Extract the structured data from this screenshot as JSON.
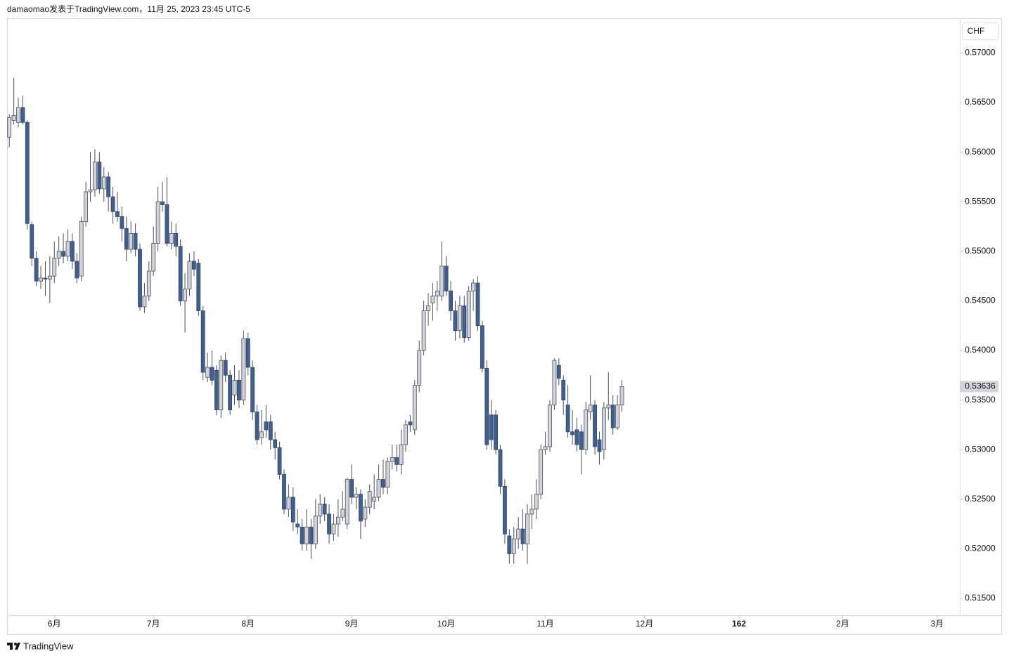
{
  "chart_data": {
    "type": "candlestick",
    "title": "damaomao发表于TradingView.com，11月 25, 2023 23:45 UTC-5",
    "currency": "CHF",
    "brand": "TradingView",
    "up_color": "#d1d4dc",
    "down_color": "#42608f",
    "xlim": [
      -0.5,
      211
    ],
    "ylim": [
      0.5133,
      0.5735
    ],
    "xticks": [
      {
        "value": 10,
        "label": "6月"
      },
      {
        "value": 32,
        "label": "7月"
      },
      {
        "value": 53,
        "label": "8月"
      },
      {
        "value": 76,
        "label": "9月"
      },
      {
        "value": 97,
        "label": "10月"
      },
      {
        "value": 119,
        "label": "11月"
      },
      {
        "value": 141,
        "label": "12月"
      },
      162,
      {
        "value": 185,
        "label": "2月"
      },
      {
        "value": 206,
        "label": "3月"
      }
    ],
    "yticks": [
      {
        "value": 0.515,
        "label": "0.51500"
      },
      {
        "value": 0.52,
        "label": "0.52000"
      },
      {
        "value": 0.525,
        "label": "0.52500"
      },
      {
        "value": 0.53,
        "label": "0.53000"
      },
      {
        "value": 0.535,
        "label": "0.53500"
      },
      {
        "value": 0.54,
        "label": "0.54000"
      },
      {
        "value": 0.545,
        "label": "0.54500"
      },
      {
        "value": 0.55,
        "label": "0.55000"
      },
      {
        "value": 0.555,
        "label": "0.55500"
      },
      {
        "value": 0.56,
        "label": "0.56000"
      },
      {
        "value": 0.565,
        "label": "0.56500"
      },
      {
        "value": 0.57,
        "label": "0.57000"
      }
    ],
    "ohlc": [
      [
        0.5615,
        0.5638,
        0.5605,
        0.5635
      ],
      [
        0.5632,
        0.5675,
        0.5628,
        0.5637
      ],
      [
        0.563,
        0.5655,
        0.5625,
        0.5645
      ],
      [
        0.5645,
        0.5657,
        0.5628,
        0.563
      ],
      [
        0.563,
        0.5632,
        0.5522,
        0.5528
      ],
      [
        0.5527,
        0.553,
        0.5485,
        0.5493
      ],
      [
        0.5493,
        0.55,
        0.5465,
        0.547
      ],
      [
        0.547,
        0.5485,
        0.5462,
        0.5473
      ],
      [
        0.5473,
        0.549,
        0.5455,
        0.5472
      ],
      [
        0.5472,
        0.5495,
        0.5448,
        0.5475
      ],
      [
        0.5475,
        0.551,
        0.5468,
        0.5493
      ],
      [
        0.5493,
        0.5515,
        0.5485,
        0.55
      ],
      [
        0.55,
        0.5518,
        0.5488,
        0.5495
      ],
      [
        0.5495,
        0.5522,
        0.549,
        0.551
      ],
      [
        0.551,
        0.5518,
        0.5482,
        0.549
      ],
      [
        0.549,
        0.5498,
        0.5468,
        0.5473
      ],
      [
        0.5475,
        0.5535,
        0.547,
        0.553
      ],
      [
        0.553,
        0.557,
        0.5525,
        0.556
      ],
      [
        0.556,
        0.56,
        0.555,
        0.5562
      ],
      [
        0.5562,
        0.5603,
        0.5555,
        0.559
      ],
      [
        0.559,
        0.56,
        0.5558,
        0.5563
      ],
      [
        0.5563,
        0.5585,
        0.555,
        0.5575
      ],
      [
        0.5575,
        0.558,
        0.554,
        0.5555
      ],
      [
        0.5555,
        0.5565,
        0.5528,
        0.554
      ],
      [
        0.554,
        0.556,
        0.553,
        0.5535
      ],
      [
        0.5535,
        0.5545,
        0.551,
        0.5523
      ],
      [
        0.5523,
        0.5535,
        0.549,
        0.5502
      ],
      [
        0.5502,
        0.553,
        0.5498,
        0.5518
      ],
      [
        0.5518,
        0.5528,
        0.5495,
        0.5502
      ],
      [
        0.5502,
        0.5508,
        0.544,
        0.5444
      ],
      [
        0.5444,
        0.5468,
        0.5438,
        0.5455
      ],
      [
        0.5455,
        0.549,
        0.545,
        0.548
      ],
      [
        0.548,
        0.5525,
        0.5475,
        0.5508
      ],
      [
        0.5508,
        0.5565,
        0.55,
        0.555
      ],
      [
        0.555,
        0.557,
        0.554,
        0.5547
      ],
      [
        0.5547,
        0.5575,
        0.5505,
        0.5508
      ],
      [
        0.5508,
        0.553,
        0.5502,
        0.5518
      ],
      [
        0.5518,
        0.5528,
        0.5495,
        0.5505
      ],
      [
        0.5505,
        0.5512,
        0.5445,
        0.545
      ],
      [
        0.545,
        0.5478,
        0.5418,
        0.5462
      ],
      [
        0.5462,
        0.5498,
        0.5455,
        0.549
      ],
      [
        0.549,
        0.55,
        0.5475,
        0.5482
      ],
      [
        0.5488,
        0.5492,
        0.5435,
        0.544
      ],
      [
        0.544,
        0.5445,
        0.537,
        0.5378
      ],
      [
        0.5373,
        0.5398,
        0.5368,
        0.5383
      ],
      [
        0.5383,
        0.54,
        0.5365,
        0.537
      ],
      [
        0.538,
        0.5385,
        0.5335,
        0.534
      ],
      [
        0.534,
        0.5395,
        0.5332,
        0.539
      ],
      [
        0.539,
        0.5398,
        0.5368,
        0.5375
      ],
      [
        0.5375,
        0.538,
        0.5335,
        0.534
      ],
      [
        0.5355,
        0.5385,
        0.5345,
        0.537
      ],
      [
        0.537,
        0.538,
        0.5342,
        0.535
      ],
      [
        0.535,
        0.542,
        0.5345,
        0.5412
      ],
      [
        0.5412,
        0.5418,
        0.5375,
        0.5383
      ],
      [
        0.5383,
        0.539,
        0.533,
        0.5338
      ],
      [
        0.5338,
        0.5345,
        0.5305,
        0.531
      ],
      [
        0.5312,
        0.534,
        0.5305,
        0.5318
      ],
      [
        0.5328,
        0.5345,
        0.5312,
        0.532
      ],
      [
        0.5328,
        0.5335,
        0.53,
        0.531
      ],
      [
        0.531,
        0.5318,
        0.529,
        0.5302
      ],
      [
        0.5302,
        0.5308,
        0.527,
        0.5275
      ],
      [
        0.5275,
        0.528,
        0.5235,
        0.524
      ],
      [
        0.524,
        0.5265,
        0.5232,
        0.5252
      ],
      [
        0.5252,
        0.5262,
        0.5218,
        0.5227
      ],
      [
        0.5225,
        0.524,
        0.5215,
        0.5222
      ],
      [
        0.5222,
        0.523,
        0.5198,
        0.5205
      ],
      [
        0.5205,
        0.524,
        0.5198,
        0.5222
      ],
      [
        0.5222,
        0.523,
        0.519,
        0.5205
      ],
      [
        0.5205,
        0.525,
        0.52,
        0.5233
      ],
      [
        0.5233,
        0.5255,
        0.5225,
        0.5245
      ],
      [
        0.5245,
        0.5252,
        0.5228,
        0.5235
      ],
      [
        0.5235,
        0.5245,
        0.5205,
        0.5215
      ],
      [
        0.5215,
        0.5235,
        0.5208,
        0.5225
      ],
      [
        0.5225,
        0.525,
        0.5212,
        0.5232
      ],
      [
        0.5232,
        0.5258,
        0.5228,
        0.524
      ],
      [
        0.5225,
        0.5272,
        0.522,
        0.527
      ],
      [
        0.527,
        0.5285,
        0.5245,
        0.5252
      ],
      [
        0.5252,
        0.5262,
        0.524,
        0.5255
      ],
      [
        0.5255,
        0.526,
        0.521,
        0.5228
      ],
      [
        0.523,
        0.525,
        0.5222,
        0.5242
      ],
      [
        0.5242,
        0.5265,
        0.5235,
        0.5258
      ],
      [
        0.5248,
        0.5275,
        0.524,
        0.5252
      ],
      [
        0.5252,
        0.5285,
        0.5248,
        0.527
      ],
      [
        0.527,
        0.529,
        0.5255,
        0.5262
      ],
      [
        0.5262,
        0.5292,
        0.5255,
        0.5288
      ],
      [
        0.5288,
        0.5305,
        0.528,
        0.5292
      ],
      [
        0.5292,
        0.5305,
        0.5278,
        0.5285
      ],
      [
        0.5285,
        0.532,
        0.5275,
        0.5305
      ],
      [
        0.5305,
        0.533,
        0.5298,
        0.5325
      ],
      [
        0.5328,
        0.5335,
        0.5318,
        0.5325
      ],
      [
        0.532,
        0.537,
        0.5315,
        0.5365
      ],
      [
        0.5365,
        0.541,
        0.5358,
        0.54
      ],
      [
        0.54,
        0.545,
        0.5395,
        0.544
      ],
      [
        0.544,
        0.5458,
        0.5425,
        0.5445
      ],
      [
        0.5448,
        0.5468,
        0.543,
        0.5455
      ],
      [
        0.5455,
        0.547,
        0.544,
        0.546
      ],
      [
        0.5455,
        0.551,
        0.545,
        0.5485
      ],
      [
        0.5485,
        0.5495,
        0.5455,
        0.546
      ],
      [
        0.546,
        0.547,
        0.543,
        0.544
      ],
      [
        0.544,
        0.545,
        0.541,
        0.542
      ],
      [
        0.542,
        0.5455,
        0.5412,
        0.5445
      ],
      [
        0.5445,
        0.5455,
        0.5408,
        0.5413
      ],
      [
        0.5413,
        0.5465,
        0.541,
        0.546
      ],
      [
        0.546,
        0.5472,
        0.544,
        0.5468
      ],
      [
        0.5468,
        0.5475,
        0.542,
        0.5425
      ],
      [
        0.5425,
        0.543,
        0.5378,
        0.5382
      ],
      [
        0.5382,
        0.539,
        0.53,
        0.5305
      ],
      [
        0.5335,
        0.535,
        0.53,
        0.531
      ],
      [
        0.5335,
        0.534,
        0.5295,
        0.53
      ],
      [
        0.53,
        0.5305,
        0.5255,
        0.5263
      ],
      [
        0.5263,
        0.527,
        0.5205,
        0.5215
      ],
      [
        0.5213,
        0.522,
        0.5185,
        0.5195
      ],
      [
        0.5195,
        0.5222,
        0.5185,
        0.521
      ],
      [
        0.521,
        0.5232,
        0.52,
        0.522
      ],
      [
        0.522,
        0.524,
        0.5198,
        0.5205
      ],
      [
        0.5205,
        0.5245,
        0.5185,
        0.5235
      ],
      [
        0.5235,
        0.5255,
        0.522,
        0.524
      ],
      [
        0.524,
        0.527,
        0.523,
        0.5255
      ],
      [
        0.5255,
        0.5305,
        0.525,
        0.53
      ],
      [
        0.53,
        0.5318,
        0.5295,
        0.5303
      ],
      [
        0.5303,
        0.535,
        0.5298,
        0.5345
      ],
      [
        0.5345,
        0.5392,
        0.534,
        0.539
      ],
      [
        0.5385,
        0.5392,
        0.5365,
        0.5372
      ],
      [
        0.537,
        0.5375,
        0.5335,
        0.535
      ],
      [
        0.5345,
        0.5365,
        0.5312,
        0.5318
      ],
      [
        0.5318,
        0.534,
        0.5305,
        0.5315
      ],
      [
        0.532,
        0.5332,
        0.5298,
        0.5305
      ],
      [
        0.5318,
        0.5325,
        0.5275,
        0.53
      ],
      [
        0.53,
        0.5348,
        0.5295,
        0.534
      ],
      [
        0.5338,
        0.5375,
        0.533,
        0.5345
      ],
      [
        0.5345,
        0.535,
        0.5295,
        0.5303
      ],
      [
        0.531,
        0.5318,
        0.5285,
        0.5298
      ],
      [
        0.53,
        0.5348,
        0.529,
        0.5342
      ],
      [
        0.5342,
        0.5378,
        0.533,
        0.5345
      ],
      [
        0.5345,
        0.5355,
        0.5315,
        0.5322
      ],
      [
        0.5322,
        0.5355,
        0.532,
        0.5345
      ],
      [
        0.5345,
        0.537,
        0.5338,
        0.53636
      ]
    ]
  }
}
